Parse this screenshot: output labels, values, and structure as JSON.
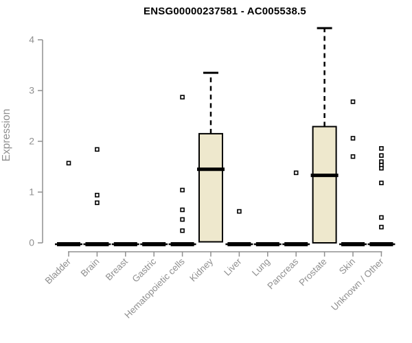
{
  "header": {
    "title": "ENSG00000237581 - AC005538.5"
  },
  "chart_data": {
    "type": "boxplot",
    "title": "ENSG00000237581 - AC005538.5",
    "xlabel": "",
    "ylabel": "Expression",
    "ylim": [
      0,
      4
    ],
    "yticks": [
      0,
      1,
      2,
      3,
      4
    ],
    "grid": false,
    "legend": "none",
    "categories": [
      "Bladder",
      "Brain",
      "Breast",
      "Gastric",
      "Hematopoietic cells",
      "Kidney",
      "Liver",
      "Lung",
      "Pancreas",
      "Prostate",
      "Skin",
      "Unknown / Other"
    ],
    "boxes": [
      {
        "category": "Bladder",
        "q1": 0,
        "median": 0,
        "q3": 0,
        "whisker_low": 0,
        "whisker_high": 0,
        "outliers": [
          1.57
        ]
      },
      {
        "category": "Brain",
        "q1": 0,
        "median": 0,
        "q3": 0,
        "whisker_low": 0,
        "whisker_high": 0,
        "outliers": [
          1.84,
          0.94,
          0.79
        ]
      },
      {
        "category": "Breast",
        "q1": 0,
        "median": 0,
        "q3": 0,
        "whisker_low": 0,
        "whisker_high": 0,
        "outliers": []
      },
      {
        "category": "Gastric",
        "q1": 0,
        "median": 0,
        "q3": 0,
        "whisker_low": 0,
        "whisker_high": 0,
        "outliers": []
      },
      {
        "category": "Hematopoietic cells",
        "q1": 0,
        "median": 0,
        "q3": 0,
        "whisker_low": 0,
        "whisker_high": 0,
        "outliers": [
          2.87,
          1.04,
          0.65,
          0.46,
          0.24
        ]
      },
      {
        "category": "Kidney",
        "q1": 0.02,
        "median": 1.45,
        "q3": 2.15,
        "whisker_low": 0,
        "whisker_high": 3.35,
        "outliers": []
      },
      {
        "category": "Liver",
        "q1": 0,
        "median": 0,
        "q3": 0,
        "whisker_low": 0,
        "whisker_high": 0,
        "outliers": [
          0.62
        ]
      },
      {
        "category": "Lung",
        "q1": 0,
        "median": 0,
        "q3": 0,
        "whisker_low": 0,
        "whisker_high": 0,
        "outliers": []
      },
      {
        "category": "Pancreas",
        "q1": 0,
        "median": 0,
        "q3": 0,
        "whisker_low": 0,
        "whisker_high": 0,
        "outliers": [
          1.38
        ]
      },
      {
        "category": "Prostate",
        "q1": 0,
        "median": 1.33,
        "q3": 2.29,
        "whisker_low": 0,
        "whisker_high": 4.23,
        "outliers": []
      },
      {
        "category": "Skin",
        "q1": 0,
        "median": 0,
        "q3": 0,
        "whisker_low": 0,
        "whisker_high": 0,
        "outliers": [
          2.78,
          2.06,
          1.7
        ]
      },
      {
        "category": "Unknown / Other",
        "q1": 0,
        "median": 0,
        "q3": 0,
        "whisker_low": 0,
        "whisker_high": 0,
        "outliers": [
          1.86,
          1.72,
          1.6,
          1.53,
          1.47,
          1.18,
          0.5,
          0.31
        ]
      }
    ],
    "colors": {
      "box_fill": "#EEE8CD",
      "box_border": "#000000",
      "median": "#000000",
      "whisker": "#000000",
      "outlier_stroke": "#000000",
      "outlier_fill": "#ffffff",
      "axis": "#8f8f8f",
      "tick_label": "#8f8f8f",
      "title": "#000000",
      "background": "#ffffff"
    }
  }
}
